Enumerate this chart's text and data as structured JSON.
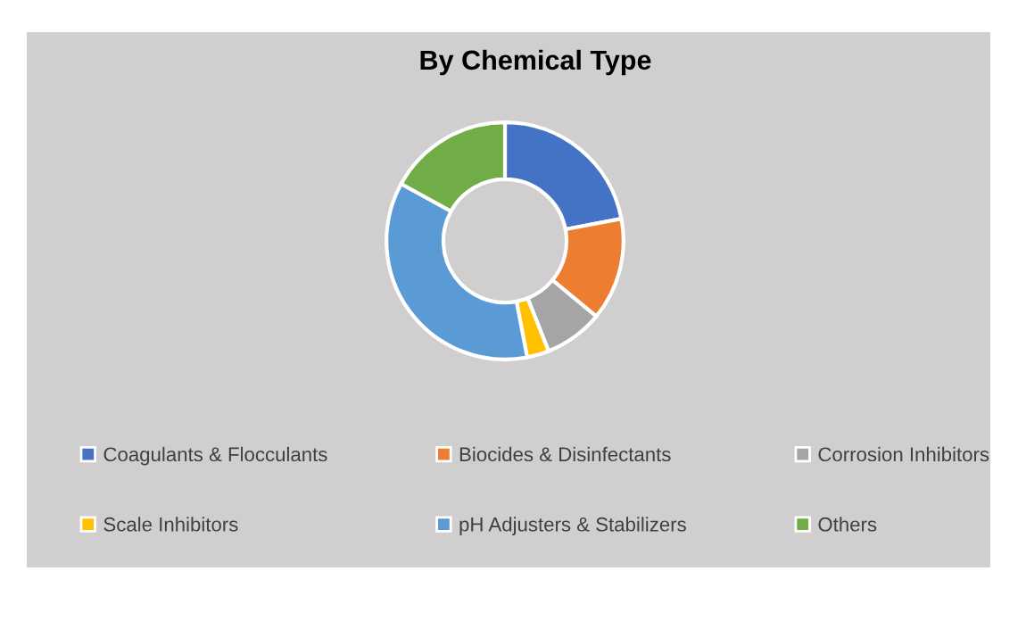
{
  "chart_data": {
    "type": "donut",
    "title": "By Chemical Type",
    "categories": [
      "Coagulants & Flocculants",
      "Biocides & Disinfectants",
      "Corrosion Inhibitors",
      "Scale Inhibitors",
      "pH Adjusters & Stabilizers",
      "Others"
    ],
    "values": [
      22,
      14,
      8,
      3,
      36,
      17
    ],
    "colors": [
      "#4472c4",
      "#ed7d31",
      "#a5a5a5",
      "#ffc000",
      "#5b9bd5",
      "#70ad47"
    ],
    "legend": "bottom"
  }
}
